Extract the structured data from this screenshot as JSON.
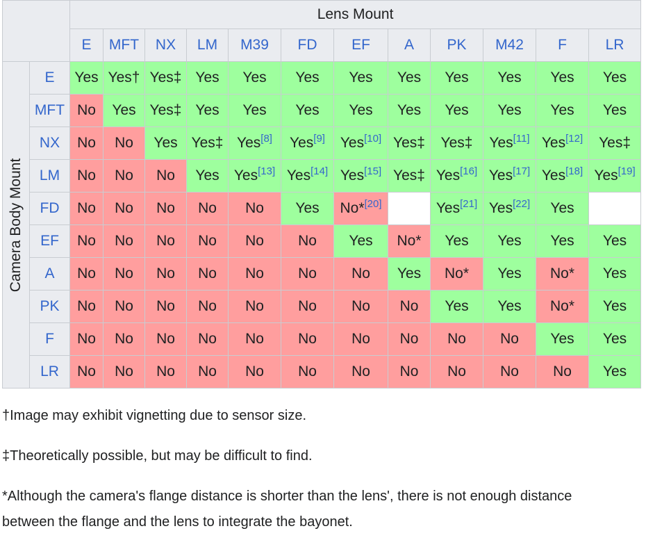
{
  "table": {
    "lens_mount_title": "Lens Mount",
    "camera_body_title": "Camera Body Mount",
    "lens_mounts": [
      "E",
      "MFT",
      "NX",
      "LM",
      "M39",
      "FD",
      "EF",
      "A",
      "PK",
      "M42",
      "F",
      "LR"
    ],
    "rows": [
      {
        "body": "E",
        "cells": [
          {
            "status": "yes",
            "text": "Yes"
          },
          {
            "status": "yes",
            "text": "Yes†"
          },
          {
            "status": "yes",
            "text": "Yes‡"
          },
          {
            "status": "yes",
            "text": "Yes"
          },
          {
            "status": "yes",
            "text": "Yes"
          },
          {
            "status": "yes",
            "text": "Yes"
          },
          {
            "status": "yes",
            "text": "Yes"
          },
          {
            "status": "yes",
            "text": "Yes"
          },
          {
            "status": "yes",
            "text": "Yes"
          },
          {
            "status": "yes",
            "text": "Yes"
          },
          {
            "status": "yes",
            "text": "Yes"
          },
          {
            "status": "yes",
            "text": "Yes"
          }
        ]
      },
      {
        "body": "MFT",
        "cells": [
          {
            "status": "no",
            "text": "No"
          },
          {
            "status": "yes",
            "text": "Yes"
          },
          {
            "status": "yes",
            "text": "Yes‡"
          },
          {
            "status": "yes",
            "text": "Yes"
          },
          {
            "status": "yes",
            "text": "Yes"
          },
          {
            "status": "yes",
            "text": "Yes"
          },
          {
            "status": "yes",
            "text": "Yes"
          },
          {
            "status": "yes",
            "text": "Yes"
          },
          {
            "status": "yes",
            "text": "Yes"
          },
          {
            "status": "yes",
            "text": "Yes"
          },
          {
            "status": "yes",
            "text": "Yes"
          },
          {
            "status": "yes",
            "text": "Yes"
          }
        ]
      },
      {
        "body": "NX",
        "cells": [
          {
            "status": "no",
            "text": "No"
          },
          {
            "status": "no",
            "text": "No"
          },
          {
            "status": "yes",
            "text": "Yes"
          },
          {
            "status": "yes",
            "text": "Yes‡"
          },
          {
            "status": "yes",
            "text": "Yes",
            "ref": "[8]"
          },
          {
            "status": "yes",
            "text": "Yes",
            "ref": "[9]"
          },
          {
            "status": "yes",
            "text": "Yes",
            "ref": "[10]"
          },
          {
            "status": "yes",
            "text": "Yes‡"
          },
          {
            "status": "yes",
            "text": "Yes‡"
          },
          {
            "status": "yes",
            "text": "Yes",
            "ref": "[11]"
          },
          {
            "status": "yes",
            "text": "Yes",
            "ref": "[12]"
          },
          {
            "status": "yes",
            "text": "Yes‡"
          }
        ]
      },
      {
        "body": "LM",
        "cells": [
          {
            "status": "no",
            "text": "No"
          },
          {
            "status": "no",
            "text": "No"
          },
          {
            "status": "no",
            "text": "No"
          },
          {
            "status": "yes",
            "text": "Yes"
          },
          {
            "status": "yes",
            "text": "Yes",
            "ref": "[13]"
          },
          {
            "status": "yes",
            "text": "Yes",
            "ref": "[14]"
          },
          {
            "status": "yes",
            "text": "Yes",
            "ref": "[15]"
          },
          {
            "status": "yes",
            "text": "Yes‡"
          },
          {
            "status": "yes",
            "text": "Yes",
            "ref": "[16]"
          },
          {
            "status": "yes",
            "text": "Yes",
            "ref": "[17]"
          },
          {
            "status": "yes",
            "text": "Yes",
            "ref": "[18]"
          },
          {
            "status": "yes",
            "text": "Yes",
            "ref": "[19]"
          }
        ]
      },
      {
        "body": "FD",
        "cells": [
          {
            "status": "no",
            "text": "No"
          },
          {
            "status": "no",
            "text": "No"
          },
          {
            "status": "no",
            "text": "No"
          },
          {
            "status": "no",
            "text": "No"
          },
          {
            "status": "no",
            "text": "No"
          },
          {
            "status": "yes",
            "text": "Yes"
          },
          {
            "status": "no",
            "text": "No*",
            "ref": "[20]"
          },
          {
            "status": "empty",
            "text": ""
          },
          {
            "status": "yes",
            "text": "Yes",
            "ref": "[21]"
          },
          {
            "status": "yes",
            "text": "Yes",
            "ref": "[22]"
          },
          {
            "status": "yes",
            "text": "Yes"
          },
          {
            "status": "empty",
            "text": ""
          }
        ]
      },
      {
        "body": "EF",
        "cells": [
          {
            "status": "no",
            "text": "No"
          },
          {
            "status": "no",
            "text": "No"
          },
          {
            "status": "no",
            "text": "No"
          },
          {
            "status": "no",
            "text": "No"
          },
          {
            "status": "no",
            "text": "No"
          },
          {
            "status": "no",
            "text": "No"
          },
          {
            "status": "yes",
            "text": "Yes"
          },
          {
            "status": "no",
            "text": "No*"
          },
          {
            "status": "yes",
            "text": "Yes"
          },
          {
            "status": "yes",
            "text": "Yes"
          },
          {
            "status": "yes",
            "text": "Yes"
          },
          {
            "status": "yes",
            "text": "Yes"
          }
        ]
      },
      {
        "body": "A",
        "cells": [
          {
            "status": "no",
            "text": "No"
          },
          {
            "status": "no",
            "text": "No"
          },
          {
            "status": "no",
            "text": "No"
          },
          {
            "status": "no",
            "text": "No"
          },
          {
            "status": "no",
            "text": "No"
          },
          {
            "status": "no",
            "text": "No"
          },
          {
            "status": "no",
            "text": "No"
          },
          {
            "status": "yes",
            "text": "Yes"
          },
          {
            "status": "no",
            "text": "No*"
          },
          {
            "status": "yes",
            "text": "Yes"
          },
          {
            "status": "no",
            "text": "No*"
          },
          {
            "status": "yes",
            "text": "Yes"
          }
        ]
      },
      {
        "body": "PK",
        "cells": [
          {
            "status": "no",
            "text": "No"
          },
          {
            "status": "no",
            "text": "No"
          },
          {
            "status": "no",
            "text": "No"
          },
          {
            "status": "no",
            "text": "No"
          },
          {
            "status": "no",
            "text": "No"
          },
          {
            "status": "no",
            "text": "No"
          },
          {
            "status": "no",
            "text": "No"
          },
          {
            "status": "no",
            "text": "No"
          },
          {
            "status": "yes",
            "text": "Yes"
          },
          {
            "status": "yes",
            "text": "Yes"
          },
          {
            "status": "no",
            "text": "No*"
          },
          {
            "status": "yes",
            "text": "Yes"
          }
        ]
      },
      {
        "body": "F",
        "cells": [
          {
            "status": "no",
            "text": "No"
          },
          {
            "status": "no",
            "text": "No"
          },
          {
            "status": "no",
            "text": "No"
          },
          {
            "status": "no",
            "text": "No"
          },
          {
            "status": "no",
            "text": "No"
          },
          {
            "status": "no",
            "text": "No"
          },
          {
            "status": "no",
            "text": "No"
          },
          {
            "status": "no",
            "text": "No"
          },
          {
            "status": "no",
            "text": "No"
          },
          {
            "status": "no",
            "text": "No"
          },
          {
            "status": "yes",
            "text": "Yes"
          },
          {
            "status": "yes",
            "text": "Yes"
          }
        ]
      },
      {
        "body": "LR",
        "cells": [
          {
            "status": "no",
            "text": "No"
          },
          {
            "status": "no",
            "text": "No"
          },
          {
            "status": "no",
            "text": "No"
          },
          {
            "status": "no",
            "text": "No"
          },
          {
            "status": "no",
            "text": "No"
          },
          {
            "status": "no",
            "text": "No"
          },
          {
            "status": "no",
            "text": "No"
          },
          {
            "status": "no",
            "text": "No"
          },
          {
            "status": "no",
            "text": "No"
          },
          {
            "status": "no",
            "text": "No"
          },
          {
            "status": "no",
            "text": "No"
          },
          {
            "status": "yes",
            "text": "Yes"
          }
        ]
      }
    ]
  },
  "notes": [
    "†Image may exhibit vignetting due to sensor size.",
    "‡Theoretically possible, but may be difficult to find.",
    "*Although the camera's flange distance is shorter than the lens', there is not enough distance between the flange and the lens to integrate the bayonet."
  ],
  "colors": {
    "yes": "#9eff9e",
    "no": "#ff9e9e",
    "header": "#eaecf0",
    "link": "#3366cc"
  }
}
